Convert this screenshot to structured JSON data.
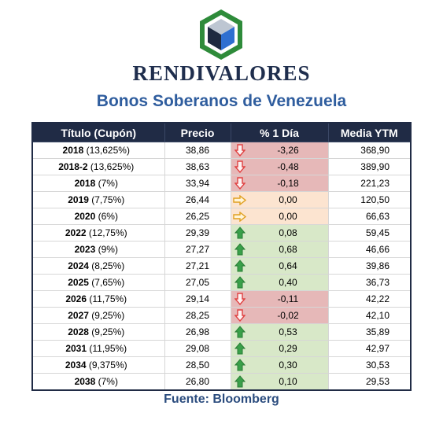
{
  "brand": {
    "name": "RENDIVALORES"
  },
  "title": "Bonos Soberanos de Venezuela",
  "table": {
    "headers": [
      "Título (Cupón)",
      "Precio",
      "% 1 Día",
      "Media YTM"
    ],
    "rows": [
      {
        "year": "2018",
        "coupon": " (13,625%)",
        "precio": "38,86",
        "pct": "-3,26",
        "trend": "down",
        "ytm": "368,90"
      },
      {
        "year": "2018-2",
        "coupon": " (13,625%)",
        "precio": "38,63",
        "pct": "-0,48",
        "trend": "down",
        "ytm": "389,90"
      },
      {
        "year": "2018",
        "coupon": " (7%)",
        "precio": "33,94",
        "pct": "-0,18",
        "trend": "down",
        "ytm": "221,23"
      },
      {
        "year": "2019",
        "coupon": " (7,75%)",
        "precio": "26,44",
        "pct": "0,00",
        "trend": "flat",
        "ytm": "120,50"
      },
      {
        "year": "2020",
        "coupon": " (6%)",
        "precio": "26,25",
        "pct": "0,00",
        "trend": "flat",
        "ytm": "66,63"
      },
      {
        "year": "2022",
        "coupon": " (12,75%)",
        "precio": "29,39",
        "pct": "0,08",
        "trend": "up",
        "ytm": "59,45"
      },
      {
        "year": "2023",
        "coupon": " (9%)",
        "precio": "27,27",
        "pct": "0,68",
        "trend": "up",
        "ytm": "46,66"
      },
      {
        "year": "2024",
        "coupon": " (8,25%)",
        "precio": "27,21",
        "pct": "0,64",
        "trend": "up",
        "ytm": "39,86"
      },
      {
        "year": "2025",
        "coupon": " (7,65%)",
        "precio": "27,05",
        "pct": "0,40",
        "trend": "up",
        "ytm": "36,73"
      },
      {
        "year": "2026",
        "coupon": " (11,75%)",
        "precio": "29,14",
        "pct": "-0,11",
        "trend": "down",
        "ytm": "42,22"
      },
      {
        "year": "2027",
        "coupon": " (9,25%)",
        "precio": "28,25",
        "pct": "-0,02",
        "trend": "down",
        "ytm": "42,10"
      },
      {
        "year": "2028",
        "coupon": " (9,25%)",
        "precio": "26,98",
        "pct": "0,53",
        "trend": "up",
        "ytm": "35,89"
      },
      {
        "year": "2031",
        "coupon": " (11,95%)",
        "precio": "29,08",
        "pct": "0,29",
        "trend": "up",
        "ytm": "42,97"
      },
      {
        "year": "2034",
        "coupon": " (9,375%)",
        "precio": "28,50",
        "pct": "0,30",
        "trend": "up",
        "ytm": "30,53"
      },
      {
        "year": "2038",
        "coupon": " (7%)",
        "precio": "26,80",
        "pct": "0,10",
        "trend": "up",
        "ytm": "29,53"
      }
    ]
  },
  "footer": "Fuente: Bloomberg",
  "colors": {
    "header_bg": "#202b45",
    "negative": "#e6b8b8",
    "neutral": "#fce4d0",
    "positive": "#d8e8c8",
    "arrow_down": "#e04040",
    "arrow_flat": "#f0b020",
    "arrow_up": "#3aa04a",
    "logo_green": "#2e8b3a",
    "logo_blue": "#2f6fd0"
  },
  "icons": {
    "logo": "cube-logo",
    "down": "arrow-down-icon",
    "flat": "arrow-right-icon",
    "up": "arrow-up-icon"
  }
}
